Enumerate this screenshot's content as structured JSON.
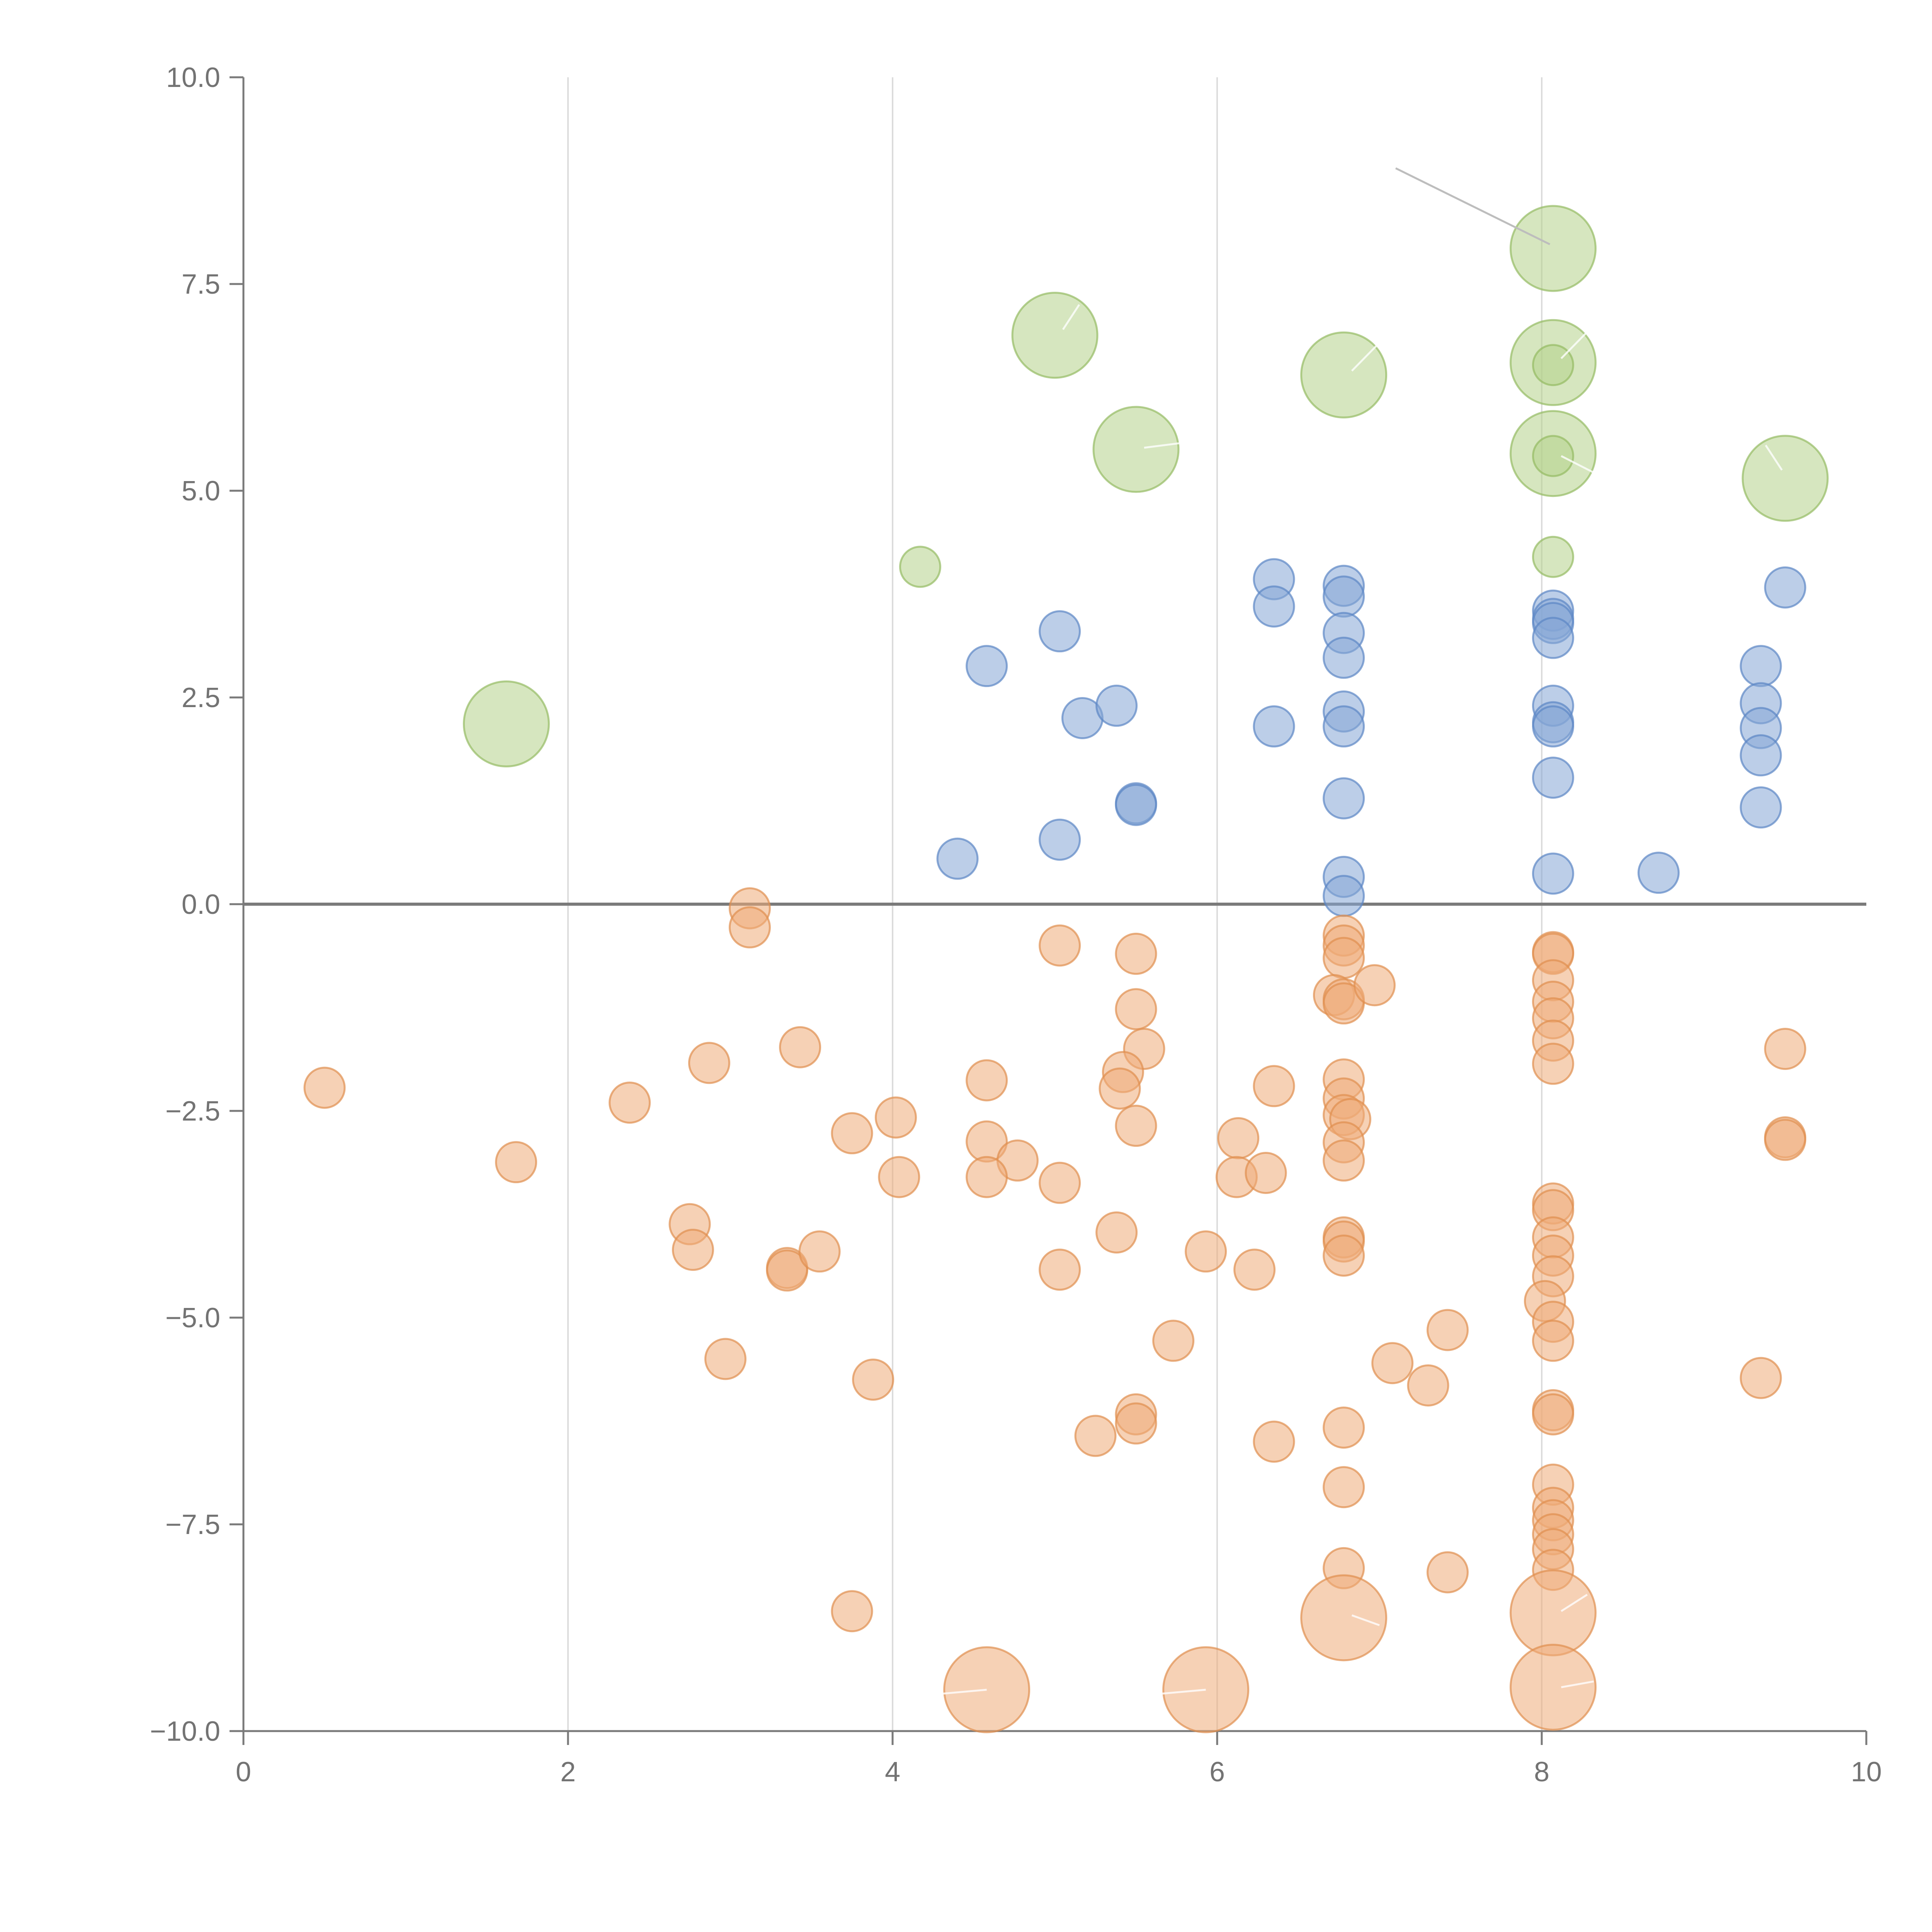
{
  "chart_data": {
    "type": "scatter",
    "title": "",
    "xlabel": "",
    "ylabel": "",
    "xlim": [
      0,
      10
    ],
    "ylim": [
      -10,
      10
    ],
    "x_ticks": [
      0,
      2,
      4,
      6,
      8,
      10
    ],
    "x_tick_labels": [
      "0",
      "2",
      "4",
      "6",
      "8",
      "10"
    ],
    "y_ticks": [
      10,
      7.5,
      5,
      2.5,
      0,
      -2.5,
      -5,
      -7.5,
      -10
    ],
    "y_tick_labels": [
      "10.0",
      "7.5",
      "5.0",
      "2.5",
      "0.0",
      "−2.5",
      "−5.0",
      "−7.5",
      "−10.0"
    ],
    "vertical_grid": [
      2,
      4,
      6,
      8
    ],
    "reference_line_y": 0,
    "colors": {
      "green_fill": "#b5d18a",
      "green_stroke": "#94bb62",
      "blue_fill": "#85a6d6",
      "blue_stroke": "#5b86c4",
      "orange_fill": "#eeac79",
      "orange_stroke": "#e08f4f"
    },
    "series": [
      {
        "name": "green",
        "color_key": "green",
        "points": [
          {
            "x": 8.07,
            "y": 7.93,
            "size": 3
          },
          {
            "x": 5.0,
            "y": 6.88,
            "size": 3
          },
          {
            "x": 6.78,
            "y": 6.4,
            "size": 3
          },
          {
            "x": 8.07,
            "y": 6.55,
            "size": 3
          },
          {
            "x": 5.5,
            "y": 5.5,
            "size": 3
          },
          {
            "x": 8.07,
            "y": 5.45,
            "size": 3
          },
          {
            "x": 9.5,
            "y": 5.15,
            "size": 3
          },
          {
            "x": 1.62,
            "y": 2.18,
            "size": 3
          },
          {
            "x": 8.07,
            "y": 6.52,
            "size": 1
          },
          {
            "x": 8.07,
            "y": 5.42,
            "size": 1
          },
          {
            "x": 8.07,
            "y": 4.2,
            "size": 1
          },
          {
            "x": 4.17,
            "y": 4.08,
            "size": 1
          }
        ]
      },
      {
        "name": "blue",
        "color_key": "blue",
        "points": [
          {
            "x": 6.35,
            "y": 3.93,
            "size": 1
          },
          {
            "x": 6.35,
            "y": 3.6,
            "size": 1
          },
          {
            "x": 6.78,
            "y": 3.85,
            "size": 1
          },
          {
            "x": 6.78,
            "y": 3.72,
            "size": 1
          },
          {
            "x": 6.78,
            "y": 3.28,
            "size": 1
          },
          {
            "x": 6.78,
            "y": 2.98,
            "size": 1
          },
          {
            "x": 6.78,
            "y": 2.33,
            "size": 1
          },
          {
            "x": 6.78,
            "y": 2.15,
            "size": 1
          },
          {
            "x": 6.78,
            "y": 1.28,
            "size": 1
          },
          {
            "x": 6.78,
            "y": 0.33,
            "size": 1
          },
          {
            "x": 6.78,
            "y": 0.1,
            "size": 1
          },
          {
            "x": 9.5,
            "y": 3.83,
            "size": 1
          },
          {
            "x": 8.07,
            "y": 3.55,
            "size": 1
          },
          {
            "x": 8.07,
            "y": 3.45,
            "size": 1
          },
          {
            "x": 8.07,
            "y": 3.4,
            "size": 1
          },
          {
            "x": 8.07,
            "y": 3.22,
            "size": 1
          },
          {
            "x": 8.07,
            "y": 2.4,
            "size": 1
          },
          {
            "x": 8.07,
            "y": 2.2,
            "size": 1
          },
          {
            "x": 8.07,
            "y": 2.15,
            "size": 1
          },
          {
            "x": 8.07,
            "y": 1.53,
            "size": 1
          },
          {
            "x": 8.07,
            "y": 0.37,
            "size": 1
          },
          {
            "x": 5.03,
            "y": 3.3,
            "size": 1
          },
          {
            "x": 4.58,
            "y": 2.88,
            "size": 1
          },
          {
            "x": 5.17,
            "y": 2.25,
            "size": 1
          },
          {
            "x": 5.38,
            "y": 2.4,
            "size": 1
          },
          {
            "x": 6.35,
            "y": 2.15,
            "size": 1
          },
          {
            "x": 9.35,
            "y": 2.88,
            "size": 1
          },
          {
            "x": 9.35,
            "y": 2.43,
            "size": 1
          },
          {
            "x": 9.35,
            "y": 2.13,
            "size": 1
          },
          {
            "x": 9.35,
            "y": 1.8,
            "size": 1
          },
          {
            "x": 9.35,
            "y": 1.17,
            "size": 1
          },
          {
            "x": 5.5,
            "y": 1.22,
            "size": 1
          },
          {
            "x": 5.5,
            "y": 1.2,
            "size": 1
          },
          {
            "x": 5.03,
            "y": 0.78,
            "size": 1
          },
          {
            "x": 4.4,
            "y": 0.55,
            "size": 1
          },
          {
            "x": 8.72,
            "y": 0.38,
            "size": 1
          }
        ]
      },
      {
        "name": "orange",
        "color_key": "orange",
        "points": [
          {
            "x": 3.12,
            "y": -0.05,
            "size": 1
          },
          {
            "x": 3.12,
            "y": -0.28,
            "size": 1
          },
          {
            "x": 5.03,
            "y": -0.5,
            "size": 1
          },
          {
            "x": 5.5,
            "y": -0.6,
            "size": 1
          },
          {
            "x": 6.78,
            "y": -0.38,
            "size": 1
          },
          {
            "x": 6.78,
            "y": -0.5,
            "size": 1
          },
          {
            "x": 6.78,
            "y": -0.65,
            "size": 1
          },
          {
            "x": 6.72,
            "y": -1.1,
            "size": 1
          },
          {
            "x": 6.78,
            "y": -1.15,
            "size": 1
          },
          {
            "x": 6.78,
            "y": -1.2,
            "size": 1
          },
          {
            "x": 6.97,
            "y": -0.98,
            "size": 1
          },
          {
            "x": 8.07,
            "y": -0.58,
            "size": 1
          },
          {
            "x": 8.07,
            "y": -0.6,
            "size": 1
          },
          {
            "x": 8.07,
            "y": -0.92,
            "size": 1
          },
          {
            "x": 8.07,
            "y": -1.18,
            "size": 1
          },
          {
            "x": 8.07,
            "y": -1.38,
            "size": 1
          },
          {
            "x": 8.07,
            "y": -1.65,
            "size": 1
          },
          {
            "x": 8.07,
            "y": -1.93,
            "size": 1
          },
          {
            "x": 5.5,
            "y": -1.27,
            "size": 1
          },
          {
            "x": 5.55,
            "y": -1.75,
            "size": 1
          },
          {
            "x": 3.43,
            "y": -1.73,
            "size": 1
          },
          {
            "x": 2.87,
            "y": -1.92,
            "size": 1
          },
          {
            "x": 0.5,
            "y": -2.22,
            "size": 1
          },
          {
            "x": 2.38,
            "y": -2.4,
            "size": 1
          },
          {
            "x": 1.68,
            "y": -3.12,
            "size": 1
          },
          {
            "x": 9.5,
            "y": -1.75,
            "size": 1
          },
          {
            "x": 4.58,
            "y": -2.13,
            "size": 1
          },
          {
            "x": 5.42,
            "y": -2.03,
            "size": 1
          },
          {
            "x": 5.4,
            "y": -2.23,
            "size": 1
          },
          {
            "x": 6.35,
            "y": -2.2,
            "size": 1
          },
          {
            "x": 6.78,
            "y": -2.12,
            "size": 1
          },
          {
            "x": 6.78,
            "y": -2.35,
            "size": 1
          },
          {
            "x": 6.78,
            "y": -2.55,
            "size": 1
          },
          {
            "x": 6.82,
            "y": -2.6,
            "size": 1
          },
          {
            "x": 6.78,
            "y": -2.88,
            "size": 1
          },
          {
            "x": 6.78,
            "y": -3.1,
            "size": 1
          },
          {
            "x": 5.5,
            "y": -2.68,
            "size": 1
          },
          {
            "x": 4.02,
            "y": -2.58,
            "size": 1
          },
          {
            "x": 3.75,
            "y": -2.77,
            "size": 1
          },
          {
            "x": 4.58,
            "y": -2.87,
            "size": 1
          },
          {
            "x": 4.77,
            "y": -3.1,
            "size": 1
          },
          {
            "x": 4.04,
            "y": -3.3,
            "size": 1
          },
          {
            "x": 4.58,
            "y": -3.3,
            "size": 1
          },
          {
            "x": 5.03,
            "y": -3.37,
            "size": 1
          },
          {
            "x": 6.13,
            "y": -2.83,
            "size": 1
          },
          {
            "x": 6.12,
            "y": -3.3,
            "size": 1
          },
          {
            "x": 6.3,
            "y": -3.25,
            "size": 1
          },
          {
            "x": 9.5,
            "y": -2.82,
            "size": 1
          },
          {
            "x": 9.5,
            "y": -2.85,
            "size": 1
          },
          {
            "x": 8.07,
            "y": -3.62,
            "size": 1
          },
          {
            "x": 8.07,
            "y": -3.7,
            "size": 1
          },
          {
            "x": 8.07,
            "y": -4.03,
            "size": 1
          },
          {
            "x": 8.07,
            "y": -4.25,
            "size": 1
          },
          {
            "x": 8.07,
            "y": -4.5,
            "size": 1
          },
          {
            "x": 8.02,
            "y": -4.8,
            "size": 1
          },
          {
            "x": 8.07,
            "y": -5.05,
            "size": 1
          },
          {
            "x": 8.07,
            "y": -5.28,
            "size": 1
          },
          {
            "x": 6.78,
            "y": -4.03,
            "size": 1
          },
          {
            "x": 6.78,
            "y": -4.08,
            "size": 1
          },
          {
            "x": 6.78,
            "y": -4.25,
            "size": 1
          },
          {
            "x": 2.75,
            "y": -3.87,
            "size": 1
          },
          {
            "x": 2.77,
            "y": -4.18,
            "size": 1
          },
          {
            "x": 3.35,
            "y": -4.4,
            "size": 1
          },
          {
            "x": 3.35,
            "y": -4.43,
            "size": 1
          },
          {
            "x": 3.55,
            "y": -4.2,
            "size": 1
          },
          {
            "x": 5.38,
            "y": -3.97,
            "size": 1
          },
          {
            "x": 5.03,
            "y": -4.42,
            "size": 1
          },
          {
            "x": 5.93,
            "y": -4.2,
            "size": 1
          },
          {
            "x": 6.23,
            "y": -4.42,
            "size": 1
          },
          {
            "x": 2.97,
            "y": -5.5,
            "size": 1
          },
          {
            "x": 3.88,
            "y": -5.75,
            "size": 1
          },
          {
            "x": 5.73,
            "y": -5.28,
            "size": 1
          },
          {
            "x": 7.42,
            "y": -5.15,
            "size": 1
          },
          {
            "x": 7.08,
            "y": -5.55,
            "size": 1
          },
          {
            "x": 7.3,
            "y": -5.82,
            "size": 1
          },
          {
            "x": 9.35,
            "y": -5.73,
            "size": 1
          },
          {
            "x": 5.5,
            "y": -6.17,
            "size": 1
          },
          {
            "x": 5.5,
            "y": -6.28,
            "size": 1
          },
          {
            "x": 5.25,
            "y": -6.43,
            "size": 1
          },
          {
            "x": 6.35,
            "y": -6.5,
            "size": 1
          },
          {
            "x": 6.78,
            "y": -6.33,
            "size": 1
          },
          {
            "x": 8.07,
            "y": -6.12,
            "size": 1
          },
          {
            "x": 8.07,
            "y": -6.17,
            "size": 1
          },
          {
            "x": 6.78,
            "y": -7.05,
            "size": 1
          },
          {
            "x": 8.07,
            "y": -7.02,
            "size": 1
          },
          {
            "x": 8.07,
            "y": -7.3,
            "size": 1
          },
          {
            "x": 8.07,
            "y": -7.45,
            "size": 1
          },
          {
            "x": 8.07,
            "y": -7.62,
            "size": 1
          },
          {
            "x": 8.07,
            "y": -7.8,
            "size": 1
          },
          {
            "x": 8.07,
            "y": -8.05,
            "size": 1
          },
          {
            "x": 6.78,
            "y": -8.03,
            "size": 1
          },
          {
            "x": 7.42,
            "y": -8.08,
            "size": 1
          },
          {
            "x": 3.75,
            "y": -8.55,
            "size": 1
          },
          {
            "x": 6.78,
            "y": -8.63,
            "size": 3
          },
          {
            "x": 8.07,
            "y": -8.57,
            "size": 3
          },
          {
            "x": 4.58,
            "y": -9.5,
            "size": 3
          },
          {
            "x": 5.93,
            "y": -9.5,
            "size": 3
          },
          {
            "x": 8.07,
            "y": -9.47,
            "size": 3
          }
        ]
      }
    ],
    "leader_line": {
      "x1": 7.1,
      "y1": 8.9,
      "x2": 8.05,
      "y2": 7.98
    },
    "inner_lines": [
      {
        "x1": 5.05,
        "y1": 6.95,
        "x2": 5.15,
        "y2": 7.25
      },
      {
        "x1": 6.83,
        "y1": 6.45,
        "x2": 6.98,
        "y2": 6.75
      },
      {
        "x1": 8.12,
        "y1": 6.6,
        "x2": 8.27,
        "y2": 6.9
      },
      {
        "x1": 5.55,
        "y1": 5.52,
        "x2": 5.95,
        "y2": 5.62
      },
      {
        "x1": 8.12,
        "y1": 5.42,
        "x2": 8.32,
        "y2": 5.22
      },
      {
        "x1": 9.48,
        "y1": 5.25,
        "x2": 9.38,
        "y2": 5.55
      },
      {
        "x1": 6.83,
        "y1": -8.6,
        "x2": 7.0,
        "y2": -8.72
      },
      {
        "x1": 8.12,
        "y1": -8.55,
        "x2": 8.28,
        "y2": -8.35
      },
      {
        "x1": 4.58,
        "y1": -9.5,
        "x2": 4.18,
        "y2": -9.57
      },
      {
        "x1": 5.93,
        "y1": -9.5,
        "x2": 5.53,
        "y2": -9.57
      },
      {
        "x1": 8.12,
        "y1": -9.47,
        "x2": 8.32,
        "y2": -9.4
      }
    ]
  }
}
